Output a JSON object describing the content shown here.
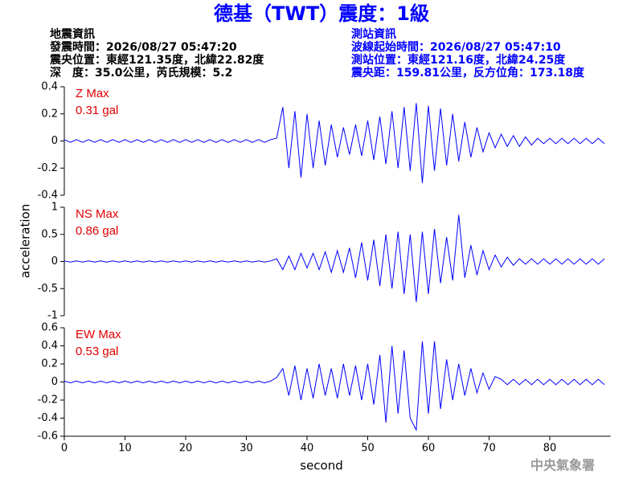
{
  "header": {
    "title": "德基（TWT）震度：1級",
    "left": [
      "地震資訊",
      "發震時間：2026/08/27 05:47:20",
      "震央位置：東經121.35度，北緯22.82度",
      "深　度：35.0公里，芮氏規模：5.2"
    ],
    "right": [
      "測站資訊",
      "波線起始時間：2026/08/27 05:47:10",
      "測站位置：東經121.16度，北緯24.25度",
      "震央距：159.81公里，反方位角：173.18度"
    ]
  },
  "ylabel": "acceleration",
  "xlabel": "second",
  "watermark": "中央氣象署",
  "chart_data": [
    {
      "type": "line",
      "annotations": [
        "Z Max",
        "0.31 gal"
      ],
      "color": "#0000ff",
      "xlim": [
        0,
        90
      ],
      "ylim": [
        -0.4,
        0.4
      ],
      "yticks": [
        -0.4,
        -0.2,
        0,
        0.2,
        0.4
      ],
      "x": [
        0,
        1,
        2,
        3,
        4,
        5,
        6,
        7,
        8,
        9,
        10,
        11,
        12,
        13,
        14,
        15,
        16,
        17,
        18,
        19,
        20,
        21,
        22,
        23,
        24,
        25,
        26,
        27,
        28,
        29,
        30,
        31,
        32,
        33,
        34,
        35,
        36,
        37,
        38,
        39,
        40,
        41,
        42,
        43,
        44,
        45,
        46,
        47,
        48,
        49,
        50,
        51,
        52,
        53,
        54,
        55,
        56,
        57,
        58,
        59,
        60,
        61,
        62,
        63,
        64,
        65,
        66,
        67,
        68,
        69,
        70,
        71,
        72,
        73,
        74,
        75,
        76,
        77,
        78,
        79,
        80,
        81,
        82,
        83,
        84,
        85,
        86,
        87,
        88,
        89
      ],
      "values": [
        0.01,
        -0.01,
        0.01,
        -0.01,
        0.01,
        -0.01,
        0.01,
        -0.01,
        0.01,
        -0.01,
        0.01,
        -0.01,
        0.01,
        -0.01,
        0.01,
        -0.01,
        0.01,
        -0.01,
        0.01,
        -0.01,
        0.01,
        -0.01,
        0.01,
        -0.01,
        0.01,
        -0.01,
        0.01,
        -0.01,
        0.01,
        -0.01,
        0.01,
        -0.01,
        0.01,
        -0.01,
        0.01,
        0.02,
        0.25,
        -0.2,
        0.22,
        -0.27,
        0.2,
        -0.2,
        0.15,
        -0.18,
        0.12,
        -0.12,
        0.1,
        -0.1,
        0.12,
        -0.11,
        0.15,
        -0.14,
        0.18,
        -0.17,
        0.22,
        -0.2,
        0.25,
        -0.22,
        0.28,
        -0.31,
        0.26,
        -0.22,
        0.24,
        -0.18,
        0.2,
        -0.15,
        0.14,
        -0.12,
        0.1,
        -0.08,
        0.06,
        -0.05,
        0.05,
        -0.04,
        0.04,
        -0.04,
        0.03,
        -0.03,
        0.02,
        -0.02,
        0.02,
        -0.02,
        0.02,
        -0.02,
        0.02,
        -0.02,
        0.02,
        -0.02,
        0.02,
        -0.02
      ]
    },
    {
      "type": "line",
      "annotations": [
        "NS Max",
        "0.86 gal"
      ],
      "color": "#0000ff",
      "xlim": [
        0,
        90
      ],
      "ylim": [
        -1,
        1
      ],
      "yticks": [
        -1,
        -0.5,
        0,
        0.5,
        1
      ],
      "x": [
        0,
        1,
        2,
        3,
        4,
        5,
        6,
        7,
        8,
        9,
        10,
        11,
        12,
        13,
        14,
        15,
        16,
        17,
        18,
        19,
        20,
        21,
        22,
        23,
        24,
        25,
        26,
        27,
        28,
        29,
        30,
        31,
        32,
        33,
        34,
        35,
        36,
        37,
        38,
        39,
        40,
        41,
        42,
        43,
        44,
        45,
        46,
        47,
        48,
        49,
        50,
        51,
        52,
        53,
        54,
        55,
        56,
        57,
        58,
        59,
        60,
        61,
        62,
        63,
        64,
        65,
        66,
        67,
        68,
        69,
        70,
        71,
        72,
        73,
        74,
        75,
        76,
        77,
        78,
        79,
        80,
        81,
        82,
        83,
        84,
        85,
        86,
        87,
        88,
        89
      ],
      "values": [
        0.01,
        -0.01,
        0.01,
        -0.01,
        0.01,
        -0.01,
        0.01,
        -0.01,
        0.01,
        -0.01,
        0.01,
        -0.01,
        0.01,
        -0.01,
        0.01,
        -0.01,
        0.01,
        -0.01,
        0.01,
        -0.01,
        0.01,
        -0.01,
        0.01,
        -0.01,
        0.01,
        -0.01,
        0.01,
        -0.01,
        0.01,
        -0.01,
        0.01,
        -0.01,
        0.01,
        -0.01,
        0.01,
        0.05,
        -0.15,
        0.1,
        -0.15,
        0.15,
        -0.12,
        0.15,
        -0.15,
        0.18,
        -0.2,
        0.2,
        -0.2,
        0.25,
        -0.3,
        0.35,
        -0.35,
        0.4,
        -0.45,
        0.5,
        -0.5,
        0.55,
        -0.6,
        0.5,
        -0.75,
        0.55,
        -0.6,
        0.6,
        -0.4,
        0.45,
        -0.35,
        0.86,
        -0.3,
        0.3,
        -0.25,
        0.2,
        -0.15,
        0.12,
        -0.1,
        0.08,
        -0.07,
        0.05,
        -0.05,
        0.05,
        -0.05,
        0.05,
        -0.05,
        0.05,
        -0.05,
        0.05,
        -0.05,
        0.05,
        -0.05,
        0.05,
        -0.05,
        0.05
      ]
    },
    {
      "type": "line",
      "annotations": [
        "EW Max",
        "0.53 gal"
      ],
      "color": "#0000ff",
      "xlim": [
        0,
        90
      ],
      "ylim": [
        -0.6,
        0.6
      ],
      "yticks": [
        -0.6,
        -0.4,
        -0.2,
        0,
        0.2,
        0.4,
        0.6
      ],
      "xticks": [
        0,
        10,
        20,
        30,
        40,
        50,
        60,
        70,
        80
      ],
      "x": [
        0,
        1,
        2,
        3,
        4,
        5,
        6,
        7,
        8,
        9,
        10,
        11,
        12,
        13,
        14,
        15,
        16,
        17,
        18,
        19,
        20,
        21,
        22,
        23,
        24,
        25,
        26,
        27,
        28,
        29,
        30,
        31,
        32,
        33,
        34,
        35,
        36,
        37,
        38,
        39,
        40,
        41,
        42,
        43,
        44,
        45,
        46,
        47,
        48,
        49,
        50,
        51,
        52,
        53,
        54,
        55,
        56,
        57,
        58,
        59,
        60,
        61,
        62,
        63,
        64,
        65,
        66,
        67,
        68,
        69,
        70,
        71,
        72,
        73,
        74,
        75,
        76,
        77,
        78,
        79,
        80,
        81,
        82,
        83,
        84,
        85,
        86,
        87,
        88,
        89
      ],
      "values": [
        0.01,
        -0.01,
        0.01,
        -0.01,
        0.01,
        -0.01,
        0.01,
        -0.01,
        0.01,
        -0.01,
        0.01,
        -0.01,
        0.01,
        -0.01,
        0.01,
        -0.01,
        0.01,
        -0.01,
        0.01,
        -0.01,
        0.01,
        -0.01,
        0.01,
        -0.01,
        0.01,
        -0.01,
        0.01,
        -0.01,
        0.01,
        -0.01,
        0.01,
        -0.01,
        0.01,
        -0.01,
        0.01,
        0.05,
        0.15,
        -0.15,
        0.18,
        -0.2,
        0.15,
        -0.18,
        0.2,
        -0.15,
        0.15,
        -0.18,
        0.2,
        -0.15,
        0.18,
        -0.2,
        0.2,
        -0.25,
        0.3,
        -0.45,
        0.4,
        -0.35,
        0.35,
        -0.4,
        -0.53,
        0.45,
        -0.35,
        0.45,
        -0.3,
        0.25,
        -0.2,
        0.2,
        -0.15,
        0.15,
        -0.12,
        0.1,
        -0.08,
        0.06,
        0.03,
        -0.03,
        0.03,
        -0.03,
        0.03,
        -0.03,
        0.03,
        -0.03,
        0.03,
        -0.03,
        0.03,
        -0.03,
        0.03,
        -0.03,
        0.03,
        -0.03,
        0.03,
        -0.03
      ]
    }
  ]
}
